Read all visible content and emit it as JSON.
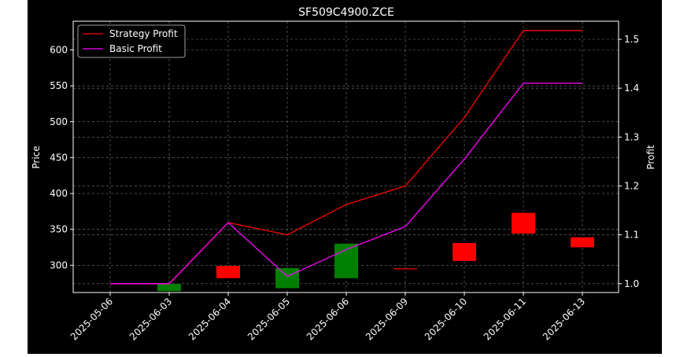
{
  "chart_data": {
    "type": "candlestick",
    "title": "SF509C4900.ZCE",
    "xlabel": "",
    "ylabel": "Price",
    "y2label": "Profit",
    "categories": [
      "2025-05-06",
      "2025-06-03",
      "2025-06-04",
      "2025-06-05",
      "2025-06-06",
      "2025-06-09",
      "2025-06-10",
      "2025-06-11",
      "2025-06-13"
    ],
    "price_ticks": [
      300,
      350,
      400,
      450,
      500,
      550,
      600
    ],
    "profit_ticks": [
      "1.0",
      "1.1",
      "1.2",
      "1.3",
      "1.4",
      "1.5"
    ],
    "ylim": [
      262,
      640
    ],
    "y2lim": [
      0.982,
      1.537
    ],
    "grid": true,
    "legend": "top-left",
    "candles": [
      {
        "date": "2025-06-03",
        "open": 274,
        "close": 264,
        "direction": "down",
        "color": "#008000"
      },
      {
        "date": "2025-06-04",
        "open": 282,
        "close": 299,
        "direction": "up",
        "color": "#ff0000"
      },
      {
        "date": "2025-06-05",
        "open": 296,
        "close": 268,
        "direction": "down",
        "color": "#008000"
      },
      {
        "date": "2025-06-06",
        "open": 330,
        "close": 282,
        "direction": "down",
        "color": "#008000"
      },
      {
        "date": "2025-06-09",
        "open": 295,
        "close": 295,
        "direction": "flat",
        "color": "#ff0000"
      },
      {
        "date": "2025-06-10",
        "open": 306,
        "close": 331,
        "direction": "up",
        "color": "#ff0000"
      },
      {
        "date": "2025-06-11",
        "open": 344,
        "close": 373,
        "direction": "up",
        "color": "#ff0000"
      },
      {
        "date": "2025-06-13",
        "open": 325,
        "close": 339,
        "direction": "up",
        "color": "#ff0000"
      }
    ],
    "series": [
      {
        "name": "Strategy Profit",
        "color": "#ff0000",
        "axis": "right",
        "values": [
          1.0,
          1.0,
          1.125,
          1.1,
          1.162,
          1.2,
          1.34,
          1.518,
          1.518
        ]
      },
      {
        "name": "Basic Profit",
        "color": "#ff00ff",
        "axis": "right",
        "values": [
          1.0,
          1.0,
          1.125,
          1.015,
          1.07,
          1.117,
          1.255,
          1.41,
          1.41
        ]
      }
    ]
  }
}
